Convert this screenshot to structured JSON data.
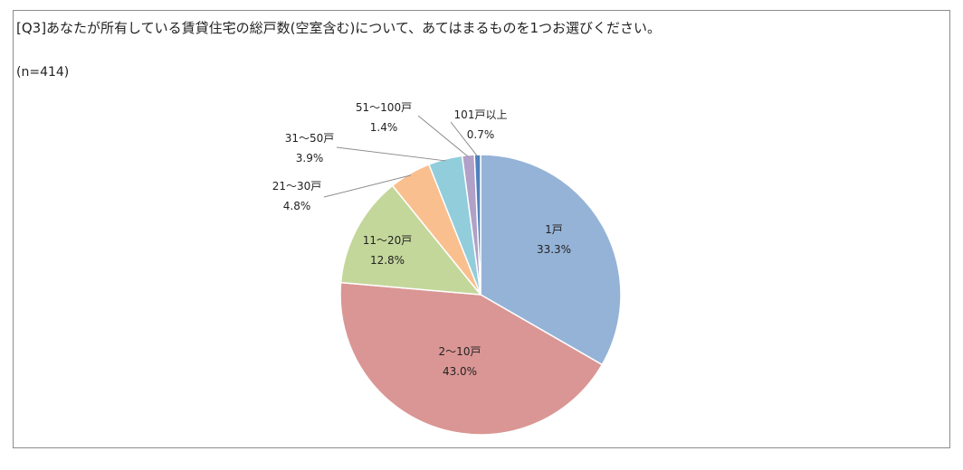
{
  "title": "[Q3]あなたが所有している賃貸住宅の総戸数(空室含む)について、あてはまるものを1つお選びください。",
  "sample_note": "(n=414)",
  "chart_data": {
    "type": "pie",
    "title": "[Q3]あなたが所有している賃貸住宅の総戸数(空室含む)について、あてはまるものを1つお選びください。",
    "n": 414,
    "unit": "%",
    "start_angle_deg": 0,
    "direction": "clockwise",
    "slices": [
      {
        "label": "1戸",
        "value": 33.3,
        "value_label": "33.3%",
        "color": "#95b3d7"
      },
      {
        "label": "2～10戸",
        "value": 43.0,
        "value_label": "43.0%",
        "color": "#da9694"
      },
      {
        "label": "11～20戸",
        "value": 12.8,
        "value_label": "12.8%",
        "color": "#c4d79b"
      },
      {
        "label": "21～30戸",
        "value": 4.8,
        "value_label": "4.8%",
        "color": "#fabf8f"
      },
      {
        "label": "31～50戸",
        "value": 3.9,
        "value_label": "3.9%",
        "color": "#92cddc"
      },
      {
        "label": "51～100戸",
        "value": 1.4,
        "value_label": "1.4%",
        "color": "#b1a0c7"
      },
      {
        "label": "101戸以上",
        "value": 0.7,
        "value_label": "0.7%",
        "color": "#4f81bd"
      }
    ],
    "border_color": "#ffffff",
    "leader_line_color": "#8c8c8c"
  }
}
